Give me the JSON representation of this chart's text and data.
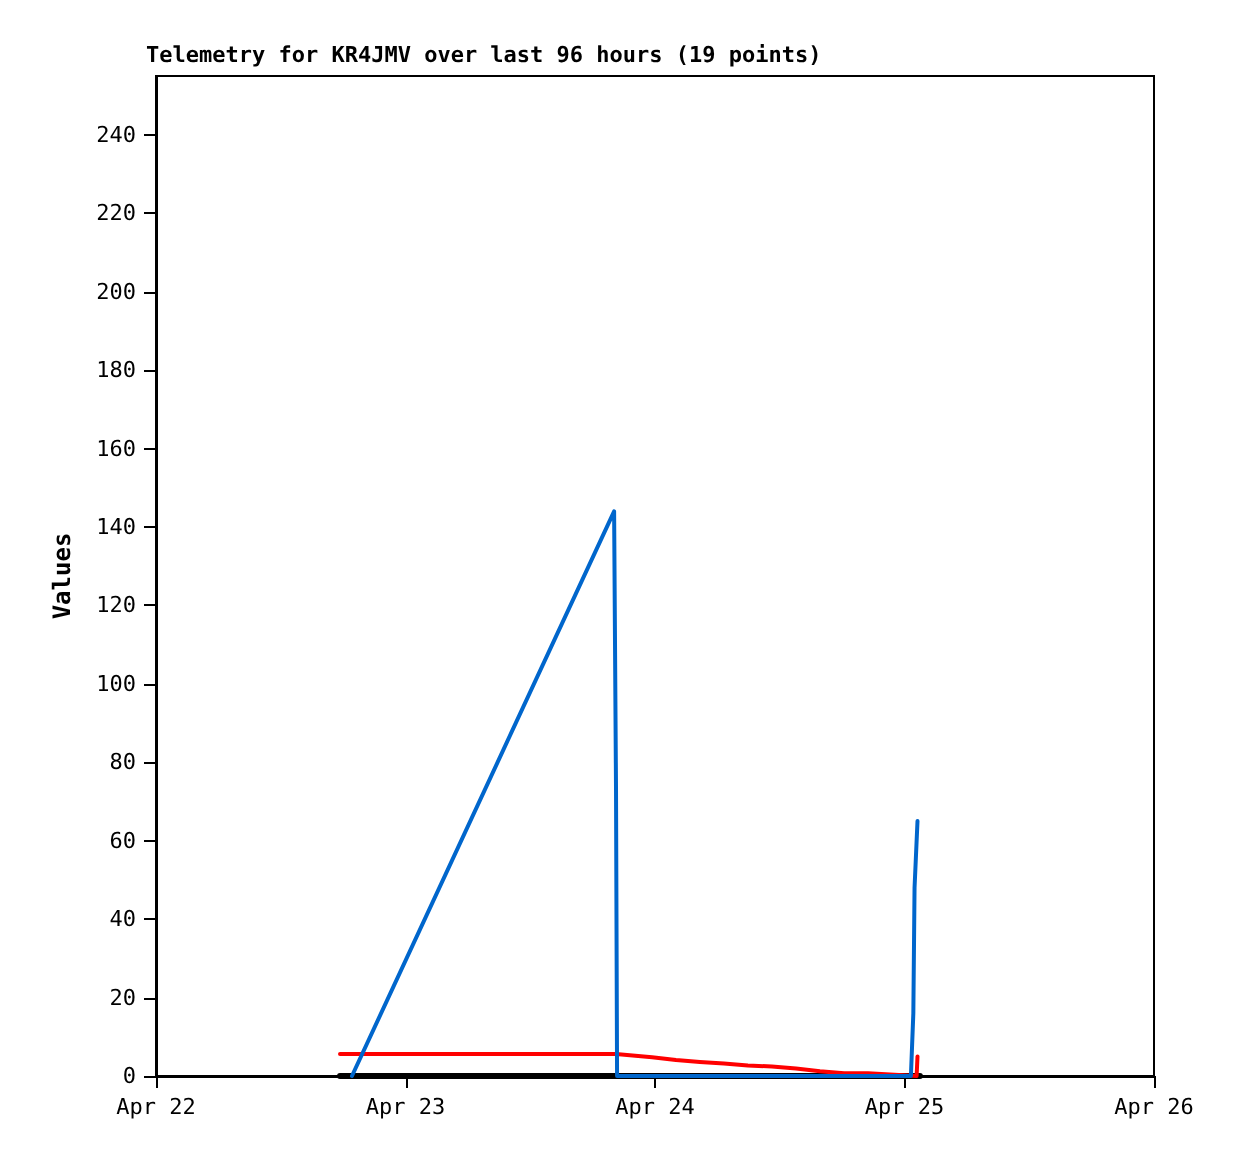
{
  "chart_data": {
    "type": "line",
    "title": "Telemetry for KR4JMV over last 96 hours (19 points)",
    "ylabel": "Values",
    "xlim": [
      "--04-22",
      "--04-26"
    ],
    "xticks": [
      {
        "value": "--04-22",
        "label": "Apr 22"
      },
      {
        "value": "--04-23",
        "label": "Apr 23"
      },
      {
        "value": "--04-24",
        "label": "Apr 24"
      },
      {
        "value": "--04-25",
        "label": "Apr 25"
      },
      {
        "value": "--04-26",
        "label": "Apr 26"
      }
    ],
    "ylim": [
      0,
      255
    ],
    "yticks": [
      0,
      20,
      40,
      60,
      80,
      100,
      120,
      140,
      160,
      180,
      200,
      220,
      240
    ],
    "grid": false,
    "marker": "none",
    "line_style": "solid",
    "series": [
      {
        "color": "#000000",
        "x": [
          "--04-22T17:42",
          "--04-25T01:29"
        ],
        "values": [
          0,
          0
        ]
      },
      {
        "color": "#ff0000",
        "x": [
          "--04-22T17:42",
          "--04-23T20:15",
          "--04-23T23:43",
          "--04-24T02:01",
          "--04-24T04:19",
          "--04-24T06:38",
          "--04-24T08:56",
          "--04-24T11:15",
          "--04-24T13:34",
          "--04-24T15:52",
          "--04-24T18:11",
          "--04-24T20:29",
          "--04-25T01:10",
          "--04-25T01:15"
        ],
        "values": [
          5.6,
          5.6,
          4.8,
          4.1,
          3.6,
          3.2,
          2.7,
          2.4,
          1.9,
          1.2,
          0.7,
          0.7,
          0,
          5
        ]
      },
      {
        "color": "#0066cc",
        "x": [
          "--04-22T18:51",
          "--04-23T20:04",
          "--04-23T20:15",
          "--04-23T20:21",
          "--04-25T00:37",
          "--04-25T00:51",
          "--04-25T00:58",
          "--04-25T01:15"
        ],
        "values": [
          0,
          144,
          73,
          0,
          0,
          16,
          48,
          65
        ]
      }
    ]
  }
}
